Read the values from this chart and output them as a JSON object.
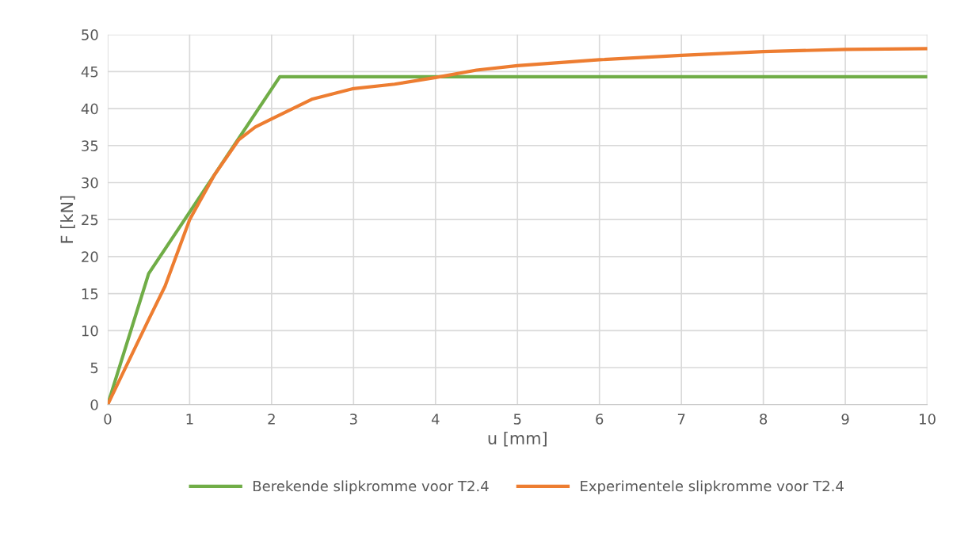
{
  "chart_data": {
    "type": "line",
    "xlabel": "u [mm]",
    "ylabel": "F [kN]",
    "xlim": [
      0,
      10
    ],
    "xticks": [
      0,
      1,
      2,
      3,
      4,
      5,
      6,
      7,
      8,
      9,
      10
    ],
    "ylim": [
      0,
      50
    ],
    "yticks": [
      0,
      5,
      10,
      15,
      20,
      25,
      30,
      35,
      40,
      45,
      50
    ],
    "grid": true,
    "legend": "bottom",
    "marker": "none",
    "line_style": "solid",
    "series": [
      {
        "name": "Berekende slipkromme voor T2.4",
        "color": "#70ad47",
        "x": [
          0,
          0.5,
          2.1,
          10
        ],
        "values": [
          0,
          17.7,
          44.3,
          44.3
        ]
      },
      {
        "name": "Experimentele slipkromme voor T2.4",
        "color": "#ed7d31",
        "x": [
          0,
          0.5,
          0.7,
          1,
          1.3,
          1.6,
          1.8,
          2,
          2.5,
          3,
          3.5,
          4,
          4.5,
          5,
          6,
          7,
          8,
          9,
          10
        ],
        "values": [
          0,
          11.5,
          16,
          25,
          31,
          35.8,
          37.5,
          38.6,
          41.3,
          42.7,
          43.3,
          44.2,
          45.2,
          45.8,
          46.6,
          47.2,
          47.7,
          48,
          48.1
        ]
      }
    ]
  }
}
